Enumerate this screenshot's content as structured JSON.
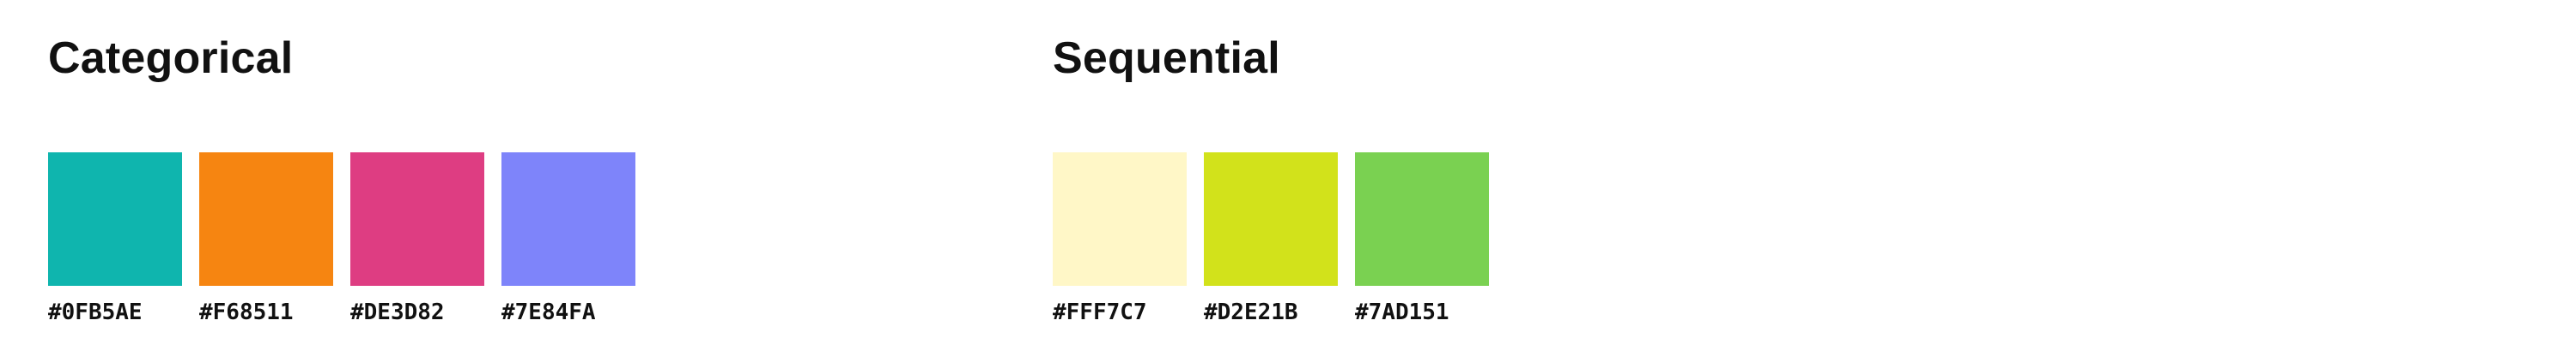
{
  "categorical": {
    "title": "Categorical",
    "swatches": [
      {
        "color": "#0FB5AE",
        "label": "#0FB5AE"
      },
      {
        "color": "#F68511",
        "label": "#F68511"
      },
      {
        "color": "#DE3D82",
        "label": "#DE3D82"
      },
      {
        "color": "#7E84FA",
        "label": "#7E84FA"
      }
    ]
  },
  "sequential": {
    "title": "Sequential",
    "swatches": [
      {
        "color": "#FFF7C7",
        "label": "#FFF7C7"
      },
      {
        "color": "#D2E21B",
        "label": "#D2E21B"
      },
      {
        "color": "#7AD151",
        "label": "#7AD151"
      }
    ]
  }
}
